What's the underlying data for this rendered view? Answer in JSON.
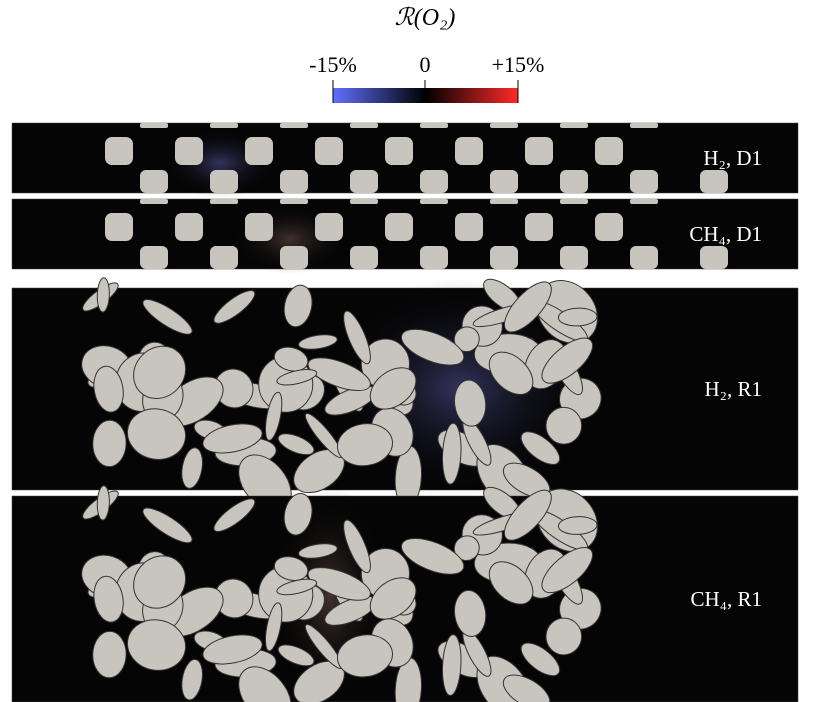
{
  "colorbar": {
    "title": "ℛ(O₂)",
    "tick_labels": [
      "-15%",
      "0",
      "+15%"
    ]
  },
  "panels": [
    {
      "label": "H₂, D1"
    },
    {
      "label": "CH₄, D1"
    },
    {
      "label": "H₂, R1"
    },
    {
      "label": "CH₄, R1"
    }
  ]
}
